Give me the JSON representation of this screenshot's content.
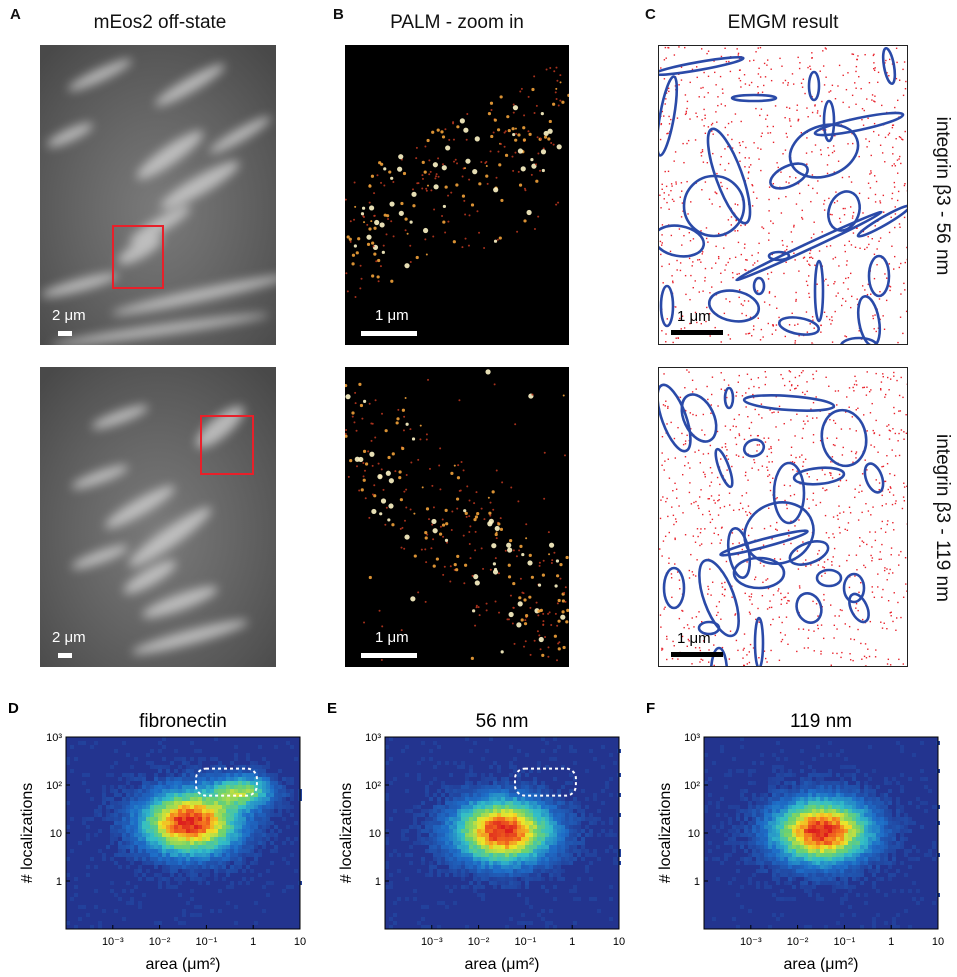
{
  "panels": {
    "A": {
      "letter": "A",
      "title": "mEos2 off-state",
      "scale_top": "2 μm",
      "scale_bottom": "2 μm"
    },
    "B": {
      "letter": "B",
      "title": "PALM - zoom in",
      "scale_top": "1 μm",
      "scale_bottom": "1 μm"
    },
    "C": {
      "letter": "C",
      "title": "EMGM result",
      "scale_top": "1 μm",
      "scale_bottom": "1 μm"
    }
  },
  "row_labels": {
    "top": "integrin β3 - 56 nm",
    "bottom": "integrin β3 - 119 nm"
  },
  "colors": {
    "highlight_box": "#e8202a",
    "ellipse": "#2a4aa8",
    "points": "#e8202a",
    "heat_bg": "#23348f"
  },
  "chart_data": [
    {
      "type": "heatmap",
      "letter": "D",
      "title": "fibronectin",
      "xlabel": "area (μm²)",
      "ylabel": "# localizations",
      "x_scale": "log",
      "y_scale": "log",
      "x_ticks": [
        "10⁻³",
        "10⁻²",
        "10⁻¹",
        "1",
        "10"
      ],
      "y_ticks": [
        "1",
        "10",
        "10²",
        "10³"
      ],
      "xlim": [
        0.0001,
        10
      ],
      "ylim": [
        0.1,
        1000
      ],
      "peak": {
        "area": 0.04,
        "localizations": 18
      },
      "highlight_region": true
    },
    {
      "type": "heatmap",
      "letter": "E",
      "title": "56 nm",
      "xlabel": "area (μm²)",
      "ylabel": "# localizations",
      "x_scale": "log",
      "y_scale": "log",
      "x_ticks": [
        "10⁻³",
        "10⁻²",
        "10⁻¹",
        "1",
        "10"
      ],
      "y_ticks": [
        "1",
        "10",
        "10²",
        "10³"
      ],
      "xlim": [
        0.0001,
        10
      ],
      "ylim": [
        0.1,
        1000
      ],
      "peak": {
        "area": 0.03,
        "localizations": 12
      },
      "highlight_region": true
    },
    {
      "type": "heatmap",
      "letter": "F",
      "title": "119 nm",
      "xlabel": "area (μm²)",
      "ylabel": "# localizations",
      "x_scale": "log",
      "y_scale": "log",
      "x_ticks": [
        "10⁻³",
        "10⁻²",
        "10⁻¹",
        "1",
        "10"
      ],
      "y_ticks": [
        "1",
        "10",
        "10²",
        "10³"
      ],
      "xlim": [
        0.0001,
        10
      ],
      "ylim": [
        0.1,
        1000
      ],
      "peak": {
        "area": 0.03,
        "localizations": 12
      },
      "highlight_region": false
    }
  ]
}
